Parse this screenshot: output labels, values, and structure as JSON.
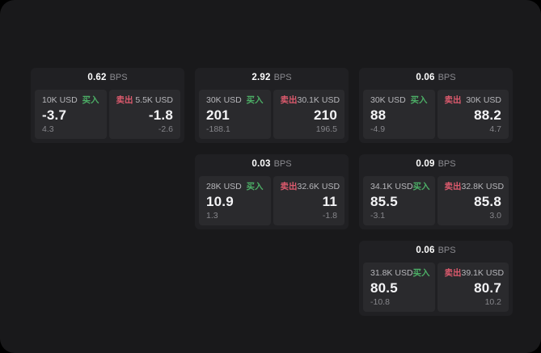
{
  "labels": {
    "bps_unit": "BPS",
    "buy": "买入",
    "sell": "卖出"
  },
  "colors": {
    "background_outer": "#000000",
    "background_screen": "#19191b",
    "card": "#202023",
    "panel": "#2a2a2d",
    "buy_green": "#4cae66",
    "sell_red": "#dc5a6d",
    "value_white": "#f4f4f6",
    "muted_gray": "#86868b"
  },
  "cards": [
    {
      "bps": "0.62",
      "buy_amount": "10K USD",
      "buy_price": "-3.7",
      "buy_delta": "4.3",
      "sell_amount": "5.5K USD",
      "sell_price": "-1.8",
      "sell_delta": "-2.6"
    },
    {
      "bps": "2.92",
      "buy_amount": "30K USD",
      "buy_price": "201",
      "buy_delta": "-188.1",
      "sell_amount": "30.1K USD",
      "sell_price": "210",
      "sell_delta": "196.5"
    },
    {
      "bps": "0.06",
      "buy_amount": "30K USD",
      "buy_price": "88",
      "buy_delta": "-4.9",
      "sell_amount": "30K USD",
      "sell_price": "88.2",
      "sell_delta": "4.7"
    },
    {
      "bps": "0.03",
      "buy_amount": "28K USD",
      "buy_price": "10.9",
      "buy_delta": "1.3",
      "sell_amount": "32.6K USD",
      "sell_price": "11",
      "sell_delta": "-1.8"
    },
    {
      "bps": "0.09",
      "buy_amount": "34.1K USD",
      "buy_price": "85.5",
      "buy_delta": "-3.1",
      "sell_amount": "32.8K USD",
      "sell_price": "85.8",
      "sell_delta": "3.0"
    },
    {
      "bps": "0.06",
      "buy_amount": "31.8K USD",
      "buy_price": "80.5",
      "buy_delta": "-10.8",
      "sell_amount": "39.1K USD",
      "sell_price": "80.7",
      "sell_delta": "10.2"
    }
  ]
}
